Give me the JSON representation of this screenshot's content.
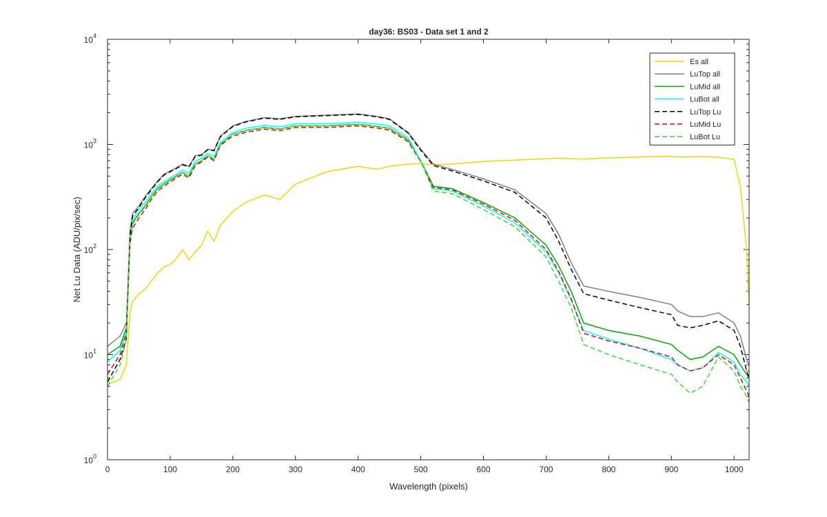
{
  "chart_data": {
    "type": "line",
    "title": "day36: BS03 - Data set 1 and 2",
    "xlabel": "Wavelength (pixels)",
    "ylabel": "Net Lu Data (ADU/pix/sec)",
    "xlim": [
      0,
      1024
    ],
    "ylim": [
      1,
      10000
    ],
    "yscale": "log",
    "grid": false,
    "legend_position": "top-right",
    "x_ticks": [
      "0",
      "100",
      "200",
      "300",
      "400",
      "500",
      "600",
      "700",
      "800",
      "900",
      "1000"
    ],
    "y_ticks": [
      {
        "base": "10",
        "exp": "0"
      },
      {
        "base": "10",
        "exp": "1"
      },
      {
        "base": "10",
        "exp": "2"
      },
      {
        "base": "10",
        "exp": "3"
      },
      {
        "base": "10",
        "exp": "4"
      }
    ],
    "x": [
      0,
      20,
      30,
      36,
      40,
      50,
      60,
      70,
      80,
      90,
      100,
      110,
      120,
      130,
      140,
      150,
      160,
      170,
      180,
      200,
      220,
      250,
      275,
      300,
      350,
      400,
      430,
      450,
      480,
      500,
      520,
      550,
      600,
      650,
      700,
      720,
      740,
      760,
      800,
      850,
      900,
      910,
      930,
      950,
      975,
      1000,
      1010,
      1020,
      1024
    ],
    "series": [
      {
        "name": "Es  all",
        "color": "#e6dc00",
        "dash": "solid",
        "values": [
          5.2,
          5.8,
          8,
          25,
          32,
          38,
          42,
          50,
          60,
          68,
          72,
          82,
          100,
          80,
          95,
          110,
          150,
          120,
          170,
          230,
          280,
          330,
          300,
          420,
          550,
          620,
          580,
          620,
          650,
          660,
          640,
          650,
          690,
          710,
          730,
          740,
          730,
          725,
          745,
          760,
          770,
          760,
          760,
          765,
          755,
          720,
          400,
          100,
          30
        ]
      },
      {
        "name": "LuTop  all",
        "color": "#808080",
        "dash": "solid",
        "values": [
          12,
          15,
          20,
          150,
          220,
          260,
          320,
          380,
          450,
          520,
          560,
          600,
          650,
          620,
          780,
          800,
          900,
          880,
          1200,
          1500,
          1650,
          1800,
          1750,
          1850,
          1900,
          1950,
          1850,
          1750,
          1300,
          900,
          650,
          580,
          470,
          370,
          220,
          140,
          75,
          45,
          40,
          35,
          30,
          26,
          23,
          23,
          25,
          20,
          15,
          9,
          8
        ]
      },
      {
        "name": "LuMid  all",
        "color": "#00aa00",
        "dash": "solid",
        "values": [
          10,
          12,
          18,
          130,
          180,
          220,
          260,
          320,
          380,
          420,
          460,
          500,
          540,
          500,
          650,
          700,
          780,
          720,
          1000,
          1250,
          1350,
          1450,
          1400,
          1500,
          1500,
          1550,
          1480,
          1420,
          1100,
          700,
          400,
          380,
          280,
          200,
          110,
          70,
          40,
          20,
          17,
          15,
          12.5,
          11,
          9,
          9.5,
          12,
          10,
          8,
          6.5,
          6
        ]
      },
      {
        "name": "LuBot  all",
        "color": "#00ffff",
        "dash": "solid",
        "values": [
          8.5,
          11,
          17,
          140,
          195,
          240,
          280,
          340,
          400,
          440,
          480,
          520,
          570,
          530,
          690,
          740,
          820,
          760,
          1050,
          1300,
          1420,
          1520,
          1470,
          1570,
          1570,
          1620,
          1560,
          1500,
          1150,
          700,
          380,
          360,
          260,
          180,
          95,
          60,
          33,
          17,
          14,
          11.5,
          9,
          8,
          7,
          7.5,
          10.5,
          8.5,
          6.5,
          5.5,
          5
        ]
      },
      {
        "name": "LuTop  Lu",
        "color": "#000000",
        "dash": "dashed",
        "values": [
          5.5,
          9,
          14,
          140,
          210,
          250,
          310,
          370,
          440,
          510,
          550,
          590,
          640,
          610,
          770,
          790,
          890,
          870,
          1180,
          1480,
          1630,
          1780,
          1730,
          1830,
          1880,
          1930,
          1830,
          1730,
          1280,
          880,
          630,
          560,
          450,
          350,
          200,
          120,
          65,
          38,
          33,
          28,
          24,
          19,
          18,
          19,
          21,
          17,
          12,
          7,
          6
        ]
      },
      {
        "name": "LuMid  Lu",
        "color": "#e60000",
        "dash": "dashed",
        "values": [
          6.5,
          10,
          16,
          115,
          160,
          200,
          240,
          300,
          360,
          400,
          440,
          480,
          520,
          480,
          630,
          680,
          760,
          700,
          980,
          1200,
          1300,
          1400,
          1350,
          1450,
          1450,
          1500,
          1430,
          1370,
          1060,
          680,
          390,
          370,
          270,
          190,
          100,
          62,
          34,
          16,
          13.5,
          11.5,
          9.5,
          8,
          7,
          7.5,
          10,
          8,
          6,
          4.5,
          4
        ]
      },
      {
        "name": "LuBot  Lu",
        "color": "#33dd33",
        "dash": "dashed",
        "values": [
          5,
          8,
          14,
          125,
          175,
          215,
          255,
          315,
          375,
          415,
          455,
          495,
          540,
          500,
          650,
          700,
          780,
          720,
          1000,
          1250,
          1350,
          1450,
          1400,
          1500,
          1500,
          1550,
          1480,
          1420,
          1100,
          690,
          360,
          340,
          240,
          165,
          85,
          50,
          28,
          12.5,
          10,
          8,
          6.5,
          5.5,
          4.3,
          5,
          9.5,
          7,
          5,
          4,
          3.5
        ]
      }
    ]
  }
}
